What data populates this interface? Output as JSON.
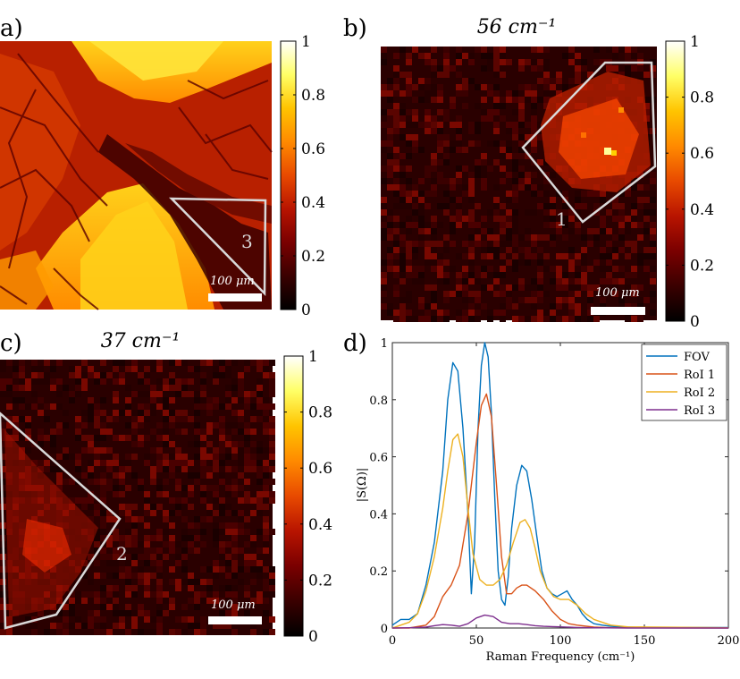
{
  "panels": {
    "a": {
      "letter": "a)",
      "title": "",
      "scalebar": "100 μm",
      "roi_label": "3",
      "cbar_ticks": [
        "0",
        "0.2",
        "0.4",
        "0.6",
        "0.8",
        "1"
      ]
    },
    "b": {
      "letter": "b)",
      "title": "56 cm⁻¹",
      "scalebar": "100 μm",
      "roi_label": "1",
      "cbar_ticks": [
        "0",
        "0.2",
        "0.4",
        "0.6",
        "0.8",
        "1"
      ]
    },
    "c": {
      "letter": "c)",
      "title": "37 cm⁻¹",
      "scalebar": "100 μm",
      "roi_label": "2",
      "cbar_ticks": [
        "0",
        "0.2",
        "0.4",
        "0.6",
        "0.8",
        "1"
      ]
    },
    "d": {
      "letter": "d)"
    }
  },
  "colors": {
    "colormap": [
      "#000000",
      "#3a0000",
      "#7a0000",
      "#b81400",
      "#e84a00",
      "#ff8a00",
      "#ffc400",
      "#ffff66",
      "#ffffff"
    ],
    "roi_outline": "#d9d9d9"
  },
  "chart_data": {
    "type": "line",
    "xlabel": "Raman Frequency (cm⁻¹)",
    "ylabel": "|S(Ω)|",
    "xlim": [
      0,
      200
    ],
    "ylim": [
      0,
      1
    ],
    "xticks": [
      "0",
      "50",
      "100",
      "150",
      "200"
    ],
    "yticks": [
      "0",
      "0.2",
      "0.4",
      "0.6",
      "0.8",
      "1"
    ],
    "legend_position": "top-right",
    "series": [
      {
        "name": "FOV",
        "color": "#0072BD",
        "x": [
          0,
          5,
          10,
          15,
          20,
          25,
          30,
          33,
          36,
          39,
          42,
          45,
          47,
          49,
          51,
          53,
          55,
          57,
          59,
          61,
          63,
          65,
          67,
          69,
          71,
          74,
          77,
          80,
          83,
          86,
          89,
          92,
          95,
          98,
          101,
          104,
          107,
          110,
          113,
          116,
          120,
          125,
          130,
          135,
          140,
          150,
          160,
          200
        ],
        "y": [
          0.01,
          0.03,
          0.03,
          0.05,
          0.15,
          0.3,
          0.55,
          0.8,
          0.93,
          0.9,
          0.7,
          0.4,
          0.12,
          0.3,
          0.7,
          0.92,
          1.0,
          0.95,
          0.75,
          0.45,
          0.2,
          0.1,
          0.08,
          0.18,
          0.35,
          0.5,
          0.57,
          0.55,
          0.45,
          0.32,
          0.2,
          0.14,
          0.12,
          0.11,
          0.12,
          0.13,
          0.1,
          0.08,
          0.05,
          0.03,
          0.015,
          0.01,
          0.006,
          0.004,
          0.003,
          0.002,
          0.002,
          0.002
        ]
      },
      {
        "name": "RoI 1",
        "color": "#D95319",
        "x": [
          0,
          10,
          20,
          25,
          30,
          35,
          40,
          45,
          50,
          53,
          56,
          59,
          62,
          65,
          68,
          71,
          74,
          77,
          80,
          85,
          90,
          95,
          100,
          105,
          110,
          120,
          130,
          200
        ],
        "y": [
          0.0,
          0.0,
          0.01,
          0.04,
          0.11,
          0.15,
          0.22,
          0.4,
          0.65,
          0.78,
          0.82,
          0.74,
          0.5,
          0.25,
          0.12,
          0.12,
          0.14,
          0.15,
          0.15,
          0.13,
          0.1,
          0.06,
          0.03,
          0.015,
          0.01,
          0.003,
          0.001,
          0.0
        ]
      },
      {
        "name": "RoI 2",
        "color": "#EDB120",
        "x": [
          0,
          5,
          10,
          15,
          20,
          25,
          30,
          33,
          36,
          39,
          42,
          45,
          48,
          52,
          56,
          60,
          64,
          68,
          72,
          76,
          79,
          82,
          85,
          88,
          92,
          96,
          100,
          105,
          110,
          115,
          120,
          130,
          140,
          200
        ],
        "y": [
          0.0,
          0.01,
          0.02,
          0.05,
          0.13,
          0.25,
          0.42,
          0.55,
          0.66,
          0.68,
          0.6,
          0.42,
          0.26,
          0.17,
          0.15,
          0.15,
          0.17,
          0.22,
          0.3,
          0.37,
          0.38,
          0.35,
          0.28,
          0.2,
          0.14,
          0.11,
          0.1,
          0.1,
          0.08,
          0.05,
          0.03,
          0.01,
          0.004,
          0.001
        ]
      },
      {
        "name": "RoI 3",
        "color": "#7E2F8E",
        "x": [
          0,
          10,
          20,
          25,
          30,
          35,
          40,
          45,
          50,
          55,
          60,
          65,
          70,
          75,
          80,
          85,
          90,
          95,
          100,
          110,
          120,
          140,
          200
        ],
        "y": [
          0.0,
          0.001,
          0.003,
          0.008,
          0.012,
          0.01,
          0.006,
          0.015,
          0.035,
          0.045,
          0.04,
          0.02,
          0.015,
          0.015,
          0.012,
          0.008,
          0.006,
          0.005,
          0.004,
          0.002,
          0.001,
          0.0,
          0.0
        ]
      }
    ]
  }
}
